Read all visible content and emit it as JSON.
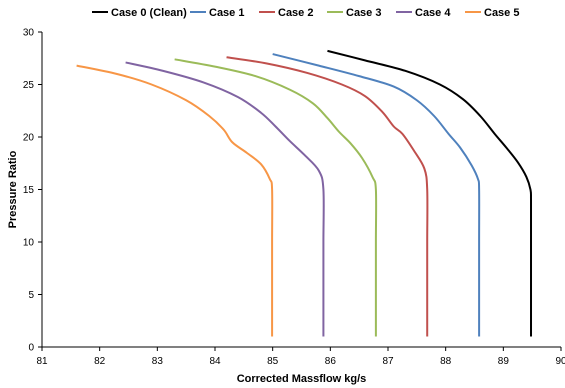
{
  "chart_data": {
    "type": "line",
    "xlabel": "Corrected Massflow  kg/s",
    "ylabel": "Pressure Ratio",
    "xlim": [
      81,
      90
    ],
    "ylim": [
      0,
      30
    ],
    "xticks": [
      81,
      82,
      83,
      84,
      85,
      86,
      87,
      88,
      89,
      90
    ],
    "yticks": [
      0,
      5,
      10,
      15,
      20,
      25,
      30
    ],
    "grid": false,
    "legend_position": "top",
    "series": [
      {
        "name": "Case 0  (Clean)",
        "color": "#000000",
        "points": [
          [
            85.95,
            28.2
          ],
          [
            86.6,
            27.3
          ],
          [
            87.3,
            26.3
          ],
          [
            87.9,
            25.0
          ],
          [
            88.3,
            23.6
          ],
          [
            88.6,
            22.0
          ],
          [
            88.85,
            20.3
          ],
          [
            89.05,
            19.0
          ],
          [
            89.25,
            17.6
          ],
          [
            89.4,
            16.2
          ],
          [
            89.47,
            15.0
          ],
          [
            89.48,
            14.0
          ],
          [
            89.48,
            10.0
          ],
          [
            89.48,
            5.0
          ],
          [
            89.48,
            1.0
          ]
        ]
      },
      {
        "name": "Case 1",
        "color": "#4F81BD",
        "points": [
          [
            85.0,
            27.9
          ],
          [
            85.8,
            26.8
          ],
          [
            86.5,
            25.8
          ],
          [
            87.1,
            24.8
          ],
          [
            87.5,
            23.5
          ],
          [
            87.8,
            22.0
          ],
          [
            88.05,
            20.3
          ],
          [
            88.25,
            19.0
          ],
          [
            88.45,
            17.3
          ],
          [
            88.56,
            16.0
          ],
          [
            88.58,
            15.0
          ],
          [
            88.58,
            10.0
          ],
          [
            88.58,
            5.0
          ],
          [
            88.58,
            1.0
          ]
        ]
      },
      {
        "name": "Case 2",
        "color": "#C0504D",
        "points": [
          [
            84.2,
            27.6
          ],
          [
            84.9,
            27.0
          ],
          [
            85.6,
            26.1
          ],
          [
            86.2,
            25.0
          ],
          [
            86.6,
            23.9
          ],
          [
            86.9,
            22.4
          ],
          [
            87.1,
            21.0
          ],
          [
            87.25,
            20.3
          ],
          [
            87.45,
            18.7
          ],
          [
            87.63,
            17.0
          ],
          [
            87.68,
            15.0
          ],
          [
            87.68,
            10.0
          ],
          [
            87.68,
            5.0
          ],
          [
            87.68,
            1.0
          ]
        ]
      },
      {
        "name": "Case 3",
        "color": "#9BBB59",
        "points": [
          [
            83.3,
            27.4
          ],
          [
            84.0,
            26.7
          ],
          [
            84.7,
            25.8
          ],
          [
            85.3,
            24.5
          ],
          [
            85.7,
            23.2
          ],
          [
            85.95,
            21.8
          ],
          [
            86.15,
            20.5
          ],
          [
            86.35,
            19.4
          ],
          [
            86.55,
            18.0
          ],
          [
            86.73,
            16.2
          ],
          [
            86.79,
            15.0
          ],
          [
            86.79,
            10.0
          ],
          [
            86.79,
            5.0
          ],
          [
            86.79,
            1.0
          ]
        ]
      },
      {
        "name": "Case 4",
        "color": "#8064A2",
        "points": [
          [
            82.45,
            27.1
          ],
          [
            83.1,
            26.3
          ],
          [
            83.8,
            25.2
          ],
          [
            84.4,
            23.8
          ],
          [
            84.8,
            22.3
          ],
          [
            85.05,
            21.0
          ],
          [
            85.3,
            19.6
          ],
          [
            85.55,
            18.3
          ],
          [
            85.8,
            16.8
          ],
          [
            85.88,
            15.0
          ],
          [
            85.88,
            10.0
          ],
          [
            85.88,
            5.0
          ],
          [
            85.88,
            1.0
          ]
        ]
      },
      {
        "name": "Case 5",
        "color": "#F79646",
        "points": [
          [
            81.6,
            26.8
          ],
          [
            82.3,
            26.0
          ],
          [
            82.9,
            25.0
          ],
          [
            83.5,
            23.5
          ],
          [
            83.9,
            22.0
          ],
          [
            84.15,
            20.7
          ],
          [
            84.3,
            19.5
          ],
          [
            84.55,
            18.5
          ],
          [
            84.8,
            17.4
          ],
          [
            84.95,
            16.0
          ],
          [
            84.99,
            15.0
          ],
          [
            84.99,
            10.0
          ],
          [
            84.99,
            5.0
          ],
          [
            84.99,
            1.0
          ]
        ]
      }
    ]
  }
}
